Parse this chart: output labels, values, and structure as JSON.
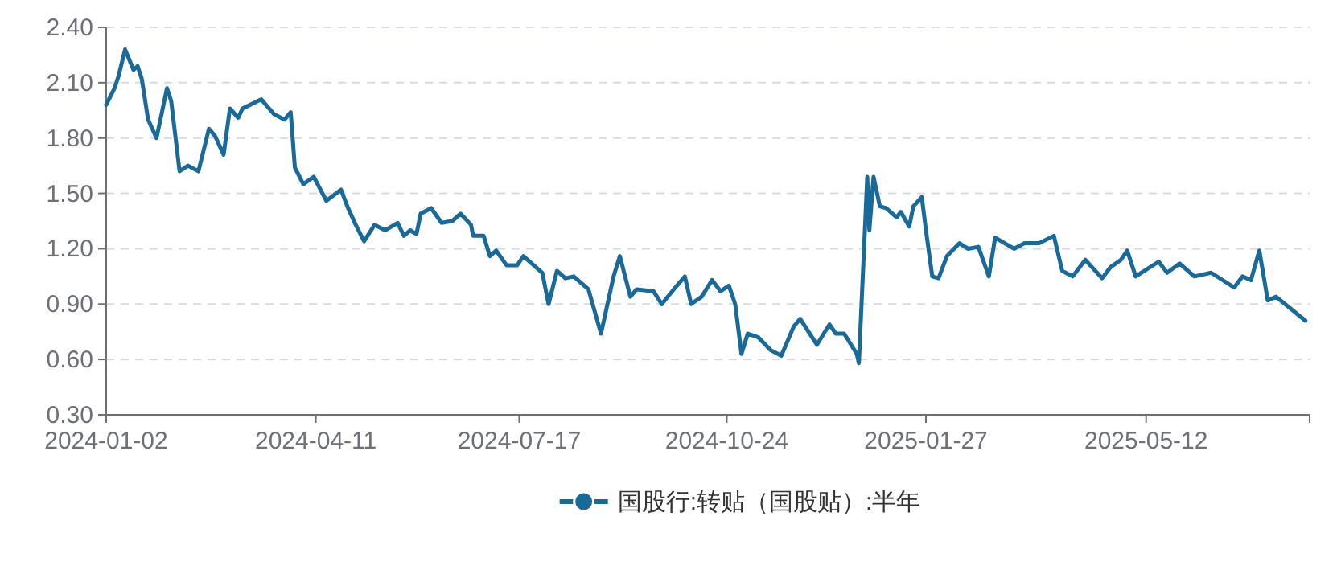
{
  "chart_data": {
    "type": "line",
    "x": [
      "2024-01-02",
      "2024-01-06",
      "2024-01-08",
      "2024-01-11",
      "2024-01-15",
      "2024-01-17",
      "2024-01-19",
      "2024-01-22",
      "2024-01-26",
      "2024-01-31",
      "2024-02-02",
      "2024-02-06",
      "2024-02-10",
      "2024-02-15",
      "2024-02-20",
      "2024-02-23",
      "2024-02-27",
      "2024-03-01",
      "2024-03-05",
      "2024-03-07",
      "2024-03-16",
      "2024-03-22",
      "2024-03-27",
      "2024-03-30",
      "2024-04-01",
      "2024-04-05",
      "2024-04-10",
      "2024-04-16",
      "2024-04-23",
      "2024-04-26",
      "2024-04-30",
      "2024-05-04",
      "2024-05-09",
      "2024-05-14",
      "2024-05-20",
      "2024-05-23",
      "2024-05-26",
      "2024-05-29",
      "2024-05-31",
      "2024-06-05",
      "2024-06-10",
      "2024-06-15",
      "2024-06-19",
      "2024-06-24",
      "2024-06-25",
      "2024-06-30",
      "2024-07-03",
      "2024-07-06",
      "2024-07-11",
      "2024-07-16",
      "2024-07-19",
      "2024-07-28",
      "2024-07-31",
      "2024-08-04",
      "2024-08-08",
      "2024-08-12",
      "2024-08-19",
      "2024-08-25",
      "2024-08-31",
      "2024-09-03",
      "2024-09-08",
      "2024-09-11",
      "2024-09-19",
      "2024-09-23",
      "2024-09-28",
      "2024-10-04",
      "2024-10-07",
      "2024-10-12",
      "2024-10-17",
      "2024-10-21",
      "2024-10-25",
      "2024-10-28",
      "2024-10-31",
      "2024-11-03",
      "2024-11-08",
      "2024-11-14",
      "2024-11-19",
      "2024-11-25",
      "2024-11-28",
      "2024-12-06",
      "2024-12-12",
      "2024-12-15",
      "2024-12-19",
      "2024-12-25",
      "2024-12-26",
      "2024-12-30",
      "2024-12-31",
      "2025-01-02",
      "2025-01-05",
      "2025-01-08",
      "2025-01-13",
      "2025-01-15",
      "2025-01-19",
      "2025-01-21",
      "2025-01-25",
      "2025-01-27",
      "2025-01-30",
      "2025-02-02",
      "2025-02-06",
      "2025-02-12",
      "2025-02-16",
      "2025-02-21",
      "2025-02-26",
      "2025-03-01",
      "2025-03-10",
      "2025-03-15",
      "2025-03-22",
      "2025-03-29",
      "2025-04-02",
      "2025-04-07",
      "2025-04-13",
      "2025-04-21",
      "2025-04-25",
      "2025-04-30",
      "2025-05-03",
      "2025-05-07",
      "2025-05-18",
      "2025-05-22",
      "2025-05-28",
      "2025-06-04",
      "2025-06-12",
      "2025-06-23",
      "2025-06-27",
      "2025-07-01",
      "2025-07-05",
      "2025-07-09",
      "2025-07-13",
      "2025-07-27"
    ],
    "series": [
      {
        "name": "国股行:转贴（国股贴）:半年",
        "color": "#1a6a99",
        "values": [
          1.98,
          2.07,
          2.14,
          2.28,
          2.17,
          2.19,
          2.12,
          1.9,
          1.8,
          2.07,
          2.0,
          1.62,
          1.65,
          1.62,
          1.85,
          1.81,
          1.71,
          1.96,
          1.91,
          1.96,
          2.01,
          1.93,
          1.9,
          1.94,
          1.64,
          1.55,
          1.59,
          1.46,
          1.52,
          1.43,
          1.33,
          1.24,
          1.33,
          1.3,
          1.34,
          1.27,
          1.3,
          1.28,
          1.39,
          1.42,
          1.34,
          1.35,
          1.39,
          1.33,
          1.27,
          1.27,
          1.16,
          1.19,
          1.11,
          1.11,
          1.16,
          1.07,
          0.9,
          1.08,
          1.04,
          1.05,
          0.98,
          0.74,
          1.05,
          1.16,
          0.94,
          0.98,
          0.97,
          0.9,
          0.97,
          1.05,
          0.9,
          0.94,
          1.03,
          0.97,
          1.0,
          0.9,
          0.63,
          0.74,
          0.72,
          0.65,
          0.62,
          0.78,
          0.82,
          0.68,
          0.79,
          0.74,
          0.74,
          0.63,
          0.58,
          1.59,
          1.3,
          1.59,
          1.43,
          1.42,
          1.37,
          1.4,
          1.32,
          1.43,
          1.48,
          1.3,
          1.05,
          1.04,
          1.16,
          1.23,
          1.2,
          1.21,
          1.05,
          1.26,
          1.2,
          1.23,
          1.23,
          1.27,
          1.08,
          1.05,
          1.14,
          1.04,
          1.1,
          1.14,
          1.19,
          1.05,
          1.13,
          1.07,
          1.12,
          1.05,
          1.07,
          0.99,
          1.05,
          1.03,
          1.19,
          0.92,
          0.94,
          0.81
        ]
      }
    ],
    "xlim": [
      "2024-01-02",
      "2025-07-29"
    ],
    "xticks": [
      "2024-01-02",
      "2024-04-11",
      "2024-07-17",
      "2024-10-24",
      "2025-01-27",
      "2025-05-12",
      {
        "value": "2025-07-29",
        "label": null
      }
    ],
    "ylim": [
      0.3,
      2.4
    ],
    "yticks": [
      {
        "value": 0.3,
        "label": "0.30"
      },
      {
        "value": 0.6,
        "label": "0.60"
      },
      {
        "value": 0.9,
        "label": "0.90"
      },
      {
        "value": 1.2,
        "label": "1.20"
      },
      {
        "value": 1.5,
        "label": "1.50"
      },
      {
        "value": 1.8,
        "label": "1.80"
      },
      {
        "value": 2.1,
        "label": "2.10"
      },
      {
        "value": 2.4,
        "label": "2.40"
      }
    ],
    "grid": "y",
    "legend": "bottom"
  }
}
